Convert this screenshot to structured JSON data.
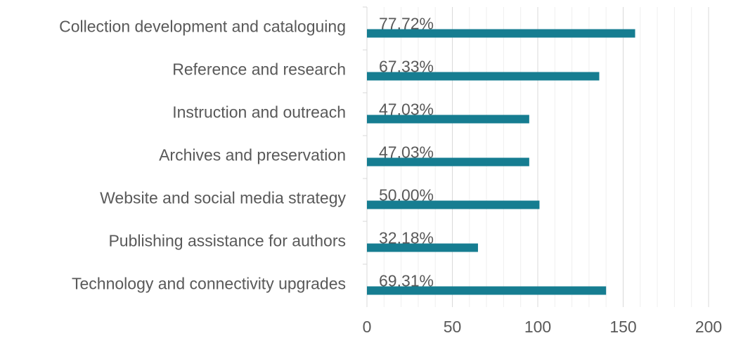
{
  "chart_data": {
    "type": "hbar",
    "categories": [
      "Collection development and cataloguing",
      "Reference and research",
      "Instruction and outreach",
      "Archives and preservation",
      "Website and social media strategy",
      "Publishing assistance for authors",
      "Technology and connectivity upgrades"
    ],
    "values": [
      157,
      136,
      95,
      95,
      101,
      65,
      140
    ],
    "data_labels": [
      "77.72%",
      "67.33%",
      "47.03%",
      "47.03%",
      "50.00%",
      "32.18%",
      "69.31%"
    ],
    "color": "#167d91",
    "xlim": [
      0,
      200
    ],
    "xticks": [
      0,
      50,
      100,
      150,
      200
    ],
    "xminor_ticks": [
      10,
      20,
      30,
      40,
      60,
      70,
      80,
      90,
      110,
      120,
      130,
      140,
      160,
      170,
      180,
      190
    ],
    "grid": true
  }
}
